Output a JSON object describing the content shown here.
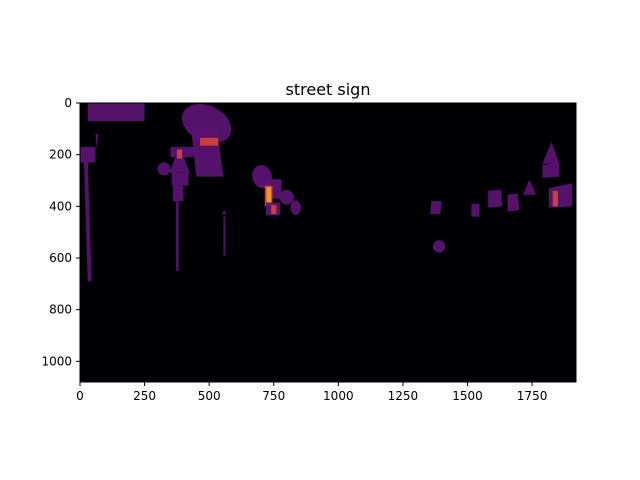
{
  "chart_data": {
    "type": "heatmap",
    "title": "street sign",
    "xlabel": "",
    "ylabel": "",
    "xlim": [
      0,
      1920
    ],
    "ylim": [
      1080,
      0
    ],
    "x_ticks": [
      0,
      250,
      500,
      750,
      1000,
      1250,
      1500,
      1750
    ],
    "y_ticks": [
      0,
      200,
      400,
      600,
      800,
      1000
    ],
    "colormap": "inferno",
    "colors": {
      "background": "#000004",
      "region": "#5a1370",
      "overlap": "#8a2a6a",
      "hot": "#d9453a",
      "hottest": "#f6a322"
    },
    "regions": [
      {
        "shape": "poly",
        "level": 1,
        "points": [
          [
            30,
            0
          ],
          [
            250,
            0
          ],
          [
            250,
            70
          ],
          [
            30,
            70
          ]
        ]
      },
      {
        "shape": "poly",
        "level": 1,
        "points": [
          [
            0,
            170
          ],
          [
            60,
            170
          ],
          [
            60,
            230
          ],
          [
            0,
            230
          ]
        ]
      },
      {
        "shape": "poly",
        "level": 1,
        "points": [
          [
            60,
            120
          ],
          [
            70,
            120
          ],
          [
            65,
            180
          ]
        ]
      },
      {
        "shape": "poly",
        "level": 1,
        "points": [
          [
            15,
            220
          ],
          [
            30,
            220
          ],
          [
            45,
            690
          ],
          [
            30,
            690
          ]
        ]
      },
      {
        "shape": "ellipse",
        "level": 1,
        "cx": 490,
        "cy": 80,
        "rx": 100,
        "ry": 70,
        "rot": 25
      },
      {
        "shape": "poly",
        "level": 1,
        "points": [
          [
            430,
            100
          ],
          [
            530,
            100
          ],
          [
            555,
            285
          ],
          [
            450,
            285
          ]
        ]
      },
      {
        "shape": "poly",
        "level": 2,
        "points": [
          [
            465,
            135
          ],
          [
            535,
            135
          ],
          [
            535,
            165
          ],
          [
            465,
            165
          ]
        ]
      },
      {
        "shape": "poly",
        "level": 1,
        "points": [
          [
            350,
            170
          ],
          [
            440,
            170
          ],
          [
            440,
            210
          ],
          [
            350,
            210
          ]
        ]
      },
      {
        "shape": "poly",
        "level": 1,
        "points": [
          [
            345,
            270
          ],
          [
            385,
            170
          ],
          [
            425,
            270
          ]
        ]
      },
      {
        "shape": "poly",
        "level": 1,
        "points": [
          [
            355,
            270
          ],
          [
            420,
            270
          ],
          [
            420,
            320
          ],
          [
            355,
            320
          ]
        ]
      },
      {
        "shape": "poly",
        "level": 2,
        "points": [
          [
            375,
            180
          ],
          [
            395,
            180
          ],
          [
            395,
            215
          ],
          [
            375,
            215
          ]
        ]
      },
      {
        "shape": "poly",
        "level": 1,
        "points": [
          [
            360,
            320
          ],
          [
            400,
            320
          ],
          [
            400,
            380
          ],
          [
            360,
            380
          ]
        ]
      },
      {
        "shape": "poly",
        "level": 1,
        "points": [
          [
            372,
            380
          ],
          [
            382,
            380
          ],
          [
            382,
            650
          ],
          [
            372,
            650
          ]
        ]
      },
      {
        "shape": "ellipse",
        "level": 1,
        "cx": 325,
        "cy": 255,
        "rx": 25,
        "ry": 25,
        "rot": 0
      },
      {
        "shape": "poly",
        "level": 1,
        "points": [
          [
            548,
            430
          ],
          [
            568,
            430
          ],
          [
            558,
            415
          ]
        ]
      },
      {
        "shape": "poly",
        "level": 1,
        "points": [
          [
            555,
            440
          ],
          [
            562,
            440
          ],
          [
            562,
            590
          ],
          [
            555,
            590
          ]
        ]
      },
      {
        "shape": "ellipse",
        "level": 1,
        "cx": 705,
        "cy": 285,
        "rx": 38,
        "ry": 45,
        "rot": -15
      },
      {
        "shape": "poly",
        "level": 1,
        "points": [
          [
            720,
            295
          ],
          [
            780,
            295
          ],
          [
            780,
            370
          ],
          [
            720,
            370
          ]
        ]
      },
      {
        "shape": "poly",
        "level": 2,
        "points": [
          [
            715,
            320
          ],
          [
            745,
            320
          ],
          [
            745,
            400
          ],
          [
            715,
            400
          ]
        ]
      },
      {
        "shape": "poly",
        "level": 3,
        "points": [
          [
            722,
            325
          ],
          [
            740,
            325
          ],
          [
            740,
            395
          ],
          [
            722,
            395
          ]
        ]
      },
      {
        "shape": "ellipse",
        "level": 1,
        "cx": 800,
        "cy": 365,
        "rx": 28,
        "ry": 28,
        "rot": 0
      },
      {
        "shape": "ellipse",
        "level": 1,
        "cx": 835,
        "cy": 405,
        "rx": 20,
        "ry": 28,
        "rot": 0
      },
      {
        "shape": "poly",
        "level": 1,
        "points": [
          [
            720,
            385
          ],
          [
            775,
            385
          ],
          [
            775,
            435
          ],
          [
            720,
            435
          ]
        ]
      },
      {
        "shape": "poly",
        "level": 2,
        "points": [
          [
            740,
            395
          ],
          [
            760,
            395
          ],
          [
            760,
            430
          ],
          [
            740,
            430
          ]
        ]
      },
      {
        "shape": "poly",
        "level": 1,
        "points": [
          [
            1360,
            380
          ],
          [
            1400,
            380
          ],
          [
            1395,
            430
          ],
          [
            1355,
            430
          ]
        ]
      },
      {
        "shape": "ellipse",
        "level": 1,
        "cx": 1390,
        "cy": 555,
        "rx": 24,
        "ry": 24,
        "rot": 0
      },
      {
        "shape": "poly",
        "level": 1,
        "points": [
          [
            1515,
            390
          ],
          [
            1545,
            390
          ],
          [
            1545,
            440
          ],
          [
            1515,
            440
          ]
        ]
      },
      {
        "shape": "poly",
        "level": 1,
        "points": [
          [
            1580,
            340
          ],
          [
            1630,
            335
          ],
          [
            1635,
            400
          ],
          [
            1580,
            405
          ]
        ]
      },
      {
        "shape": "poly",
        "level": 1,
        "points": [
          [
            1655,
            355
          ],
          [
            1695,
            350
          ],
          [
            1700,
            415
          ],
          [
            1655,
            420
          ]
        ]
      },
      {
        "shape": "poly",
        "level": 1,
        "points": [
          [
            1715,
            355
          ],
          [
            1740,
            295
          ],
          [
            1765,
            355
          ]
        ]
      },
      {
        "shape": "poly",
        "level": 1,
        "points": [
          [
            1790,
            235
          ],
          [
            1825,
            150
          ],
          [
            1855,
            235
          ]
        ]
      },
      {
        "shape": "poly",
        "level": 1,
        "points": [
          [
            1790,
            240
          ],
          [
            1855,
            230
          ],
          [
            1855,
            285
          ],
          [
            1790,
            290
          ]
        ]
      },
      {
        "shape": "poly",
        "level": 1,
        "points": [
          [
            1815,
            330
          ],
          [
            1905,
            310
          ],
          [
            1905,
            400
          ],
          [
            1815,
            405
          ]
        ]
      },
      {
        "shape": "poly",
        "level": 2,
        "points": [
          [
            1830,
            340
          ],
          [
            1850,
            340
          ],
          [
            1850,
            400
          ],
          [
            1830,
            400
          ]
        ]
      }
    ]
  }
}
